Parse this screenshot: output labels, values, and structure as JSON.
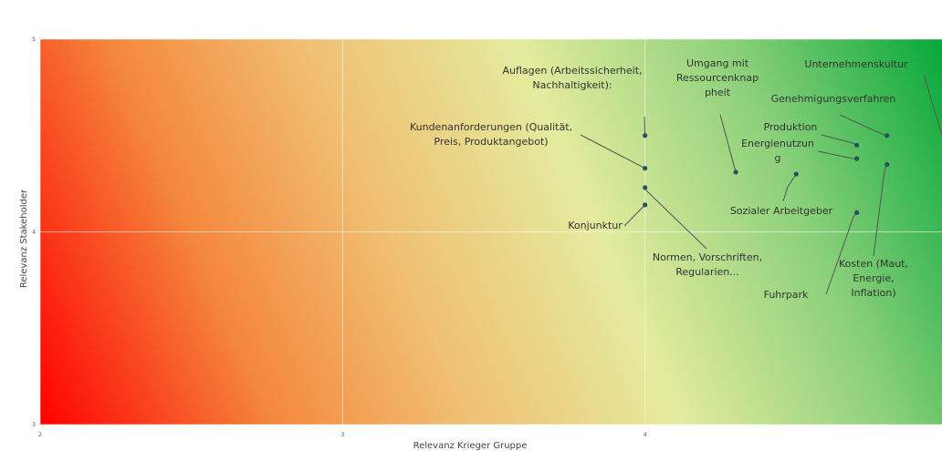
{
  "chart_data": {
    "type": "scatter",
    "title": "",
    "xlabel": "Relevanz Krieger Gruppe",
    "ylabel": "Relevanz Stakeholder",
    "xlim": [
      2,
      5
    ],
    "ylim": [
      3,
      5
    ],
    "x_ticks": [
      "2",
      "3",
      "4"
    ],
    "y_ticks": [
      "3",
      "4",
      "5"
    ],
    "grid": true,
    "background": "diagonal gradient from red (bottom-left) through yellow to green (top-right)",
    "colors": {
      "low": "#ff0000",
      "mid_low": "#f0a85a",
      "mid": "#e4eb9e",
      "high": "#07a83a",
      "point": "#2a4f63"
    },
    "points": [
      {
        "label": "Auflagen (Arbeitssicherheit,\nNachhaltigkeit):",
        "x": 4.0,
        "y": 4.5
      },
      {
        "label": "Kundenanforderungen (Qualität,\nPreis, Produktangebot)",
        "x": 4.0,
        "y": 4.33
      },
      {
        "label": "Normen, Vorschriften,\nRegularien...",
        "x": 4.0,
        "y": 4.23
      },
      {
        "label": "Konjunktur",
        "x": 4.0,
        "y": 4.14
      },
      {
        "label": "Umgang mit\nRessourcenknap\npheit",
        "x": 4.3,
        "y": 4.31
      },
      {
        "label": "Sozialer Arbeitgeber",
        "x": 4.5,
        "y": 4.3
      },
      {
        "label": "Unternehmenskultur",
        "x": 5.0,
        "y": 4.55
      },
      {
        "label": "Genehmigungsverfahren",
        "x": 4.8,
        "y": 4.5
      },
      {
        "label": "Produktion",
        "x": 4.7,
        "y": 4.45
      },
      {
        "label": "Energienutzun\ng",
        "x": 4.7,
        "y": 4.38
      },
      {
        "label": "Kosten (Maut,\nEnergie,\nInflation)",
        "x": 4.8,
        "y": 4.35
      },
      {
        "label": "Fuhrpark",
        "x": 4.7,
        "y": 4.1
      }
    ]
  }
}
